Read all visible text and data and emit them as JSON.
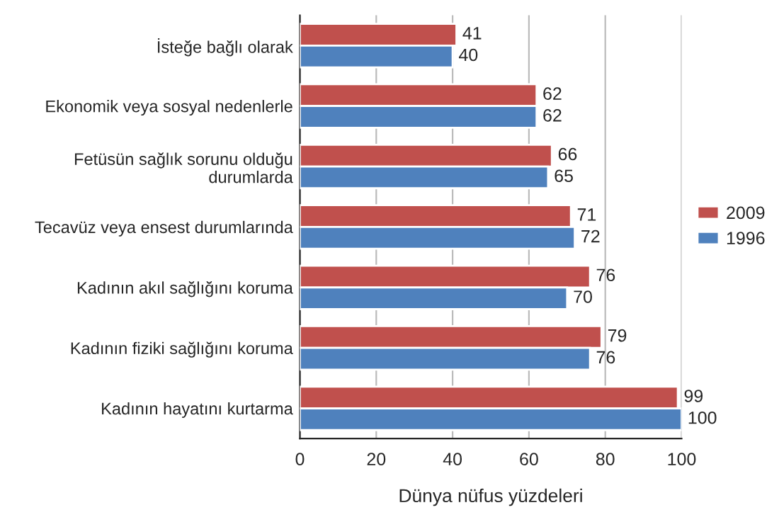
{
  "chart_data": {
    "type": "bar",
    "orientation": "horizontal",
    "xlabel": "Dünya nüfus yüzdeleri",
    "categories": [
      "İsteğe bağlı olarak",
      "Ekonomik veya sosyal nedenlerle",
      "Fetüsün sağlık sorunu olduğu\ndurumlarda",
      "Tecavüz veya ensest durumlarında",
      "Kadının akıl sağlığını koruma",
      "Kadının fiziki sağlığını koruma",
      "Kadının hayatını kurtarma"
    ],
    "series": [
      {
        "name": "2009",
        "color": "#c0504d",
        "values": [
          41,
          62,
          66,
          71,
          76,
          79,
          99
        ]
      },
      {
        "name": "1996",
        "color": "#4f81bd",
        "values": [
          40,
          62,
          65,
          72,
          70,
          76,
          100
        ]
      }
    ],
    "xlim": [
      0,
      100
    ],
    "xticks": [
      0,
      20,
      40,
      60,
      80,
      100
    ],
    "grid": "x",
    "legend": "right",
    "data_labels": true
  }
}
